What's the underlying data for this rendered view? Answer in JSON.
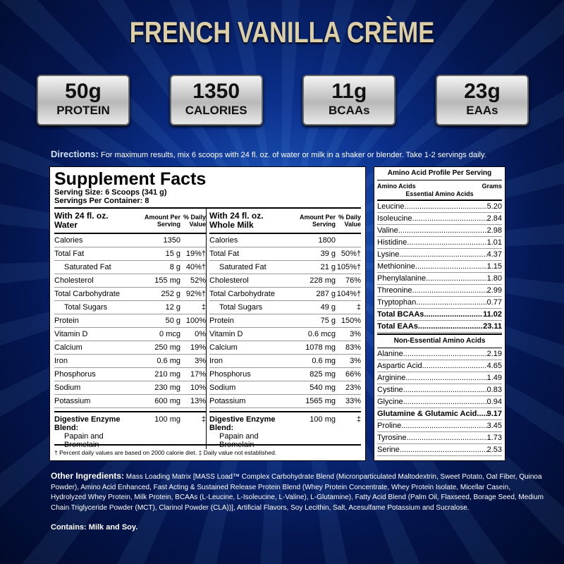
{
  "title": "FRENCH VANILLA CRÈME",
  "badges": [
    {
      "value": "50g",
      "label": "PROTEIN"
    },
    {
      "value": "1350",
      "label": "CALORIES"
    },
    {
      "value": "11g",
      "label": "BCAAs"
    },
    {
      "value": "23g",
      "label": "EAAs"
    }
  ],
  "directions": {
    "label": "Directions:",
    "text": "For maximum results, mix 6 scoops with 24 fl. oz. of water or milk in a shaker or blender. Take 1-2 servings daily."
  },
  "facts": {
    "title": "Supplement Facts",
    "serving_size": "Serving Size: 6 Scoops (341 g)",
    "servings": "Servings Per Container: 8",
    "amount_header": "Amount Per Serving",
    "dv_header": "% Daily Value",
    "water": {
      "heading": "With 24 fl. oz. Water",
      "rows": [
        {
          "n": "Calories",
          "a": "1350",
          "d": ""
        },
        {
          "n": "Total Fat",
          "a": "15 g",
          "d": "19%†"
        },
        {
          "n": "Saturated Fat",
          "a": "8 g",
          "d": "40%†",
          "ind": true
        },
        {
          "n": "Cholesterol",
          "a": "155 mg",
          "d": "52%"
        },
        {
          "n": "Total Carbohydrate",
          "a": "252 g",
          "d": "92%†"
        },
        {
          "n": "Total Sugars",
          "a": "12 g",
          "d": "‡",
          "ind": true
        },
        {
          "n": "Protein",
          "a": "50 g",
          "d": "100%"
        },
        {
          "n": "Vitamin D",
          "a": "0 mcg",
          "d": "0%"
        },
        {
          "n": "Calcium",
          "a": "250 mg",
          "d": "19%"
        },
        {
          "n": "Iron",
          "a": "0.6 mg",
          "d": "3%"
        },
        {
          "n": "Phosphorus",
          "a": "210 mg",
          "d": "17%"
        },
        {
          "n": "Sodium",
          "a": "230 mg",
          "d": "10%"
        },
        {
          "n": "Potassium",
          "a": "600 mg",
          "d": "13%"
        }
      ],
      "blend": {
        "n": "Digestive Enzyme Blend:",
        "sub": "Papain and Bromelain",
        "a": "100 mg",
        "d": "‡"
      }
    },
    "milk": {
      "heading": "With 24 fl. oz. Whole Milk",
      "rows": [
        {
          "n": "Calories",
          "a": "1800",
          "d": ""
        },
        {
          "n": "Total Fat",
          "a": "39 g",
          "d": "50%†"
        },
        {
          "n": "Saturated Fat",
          "a": "21 g",
          "d": "105%†",
          "ind": true
        },
        {
          "n": "Cholesterol",
          "a": "228 mg",
          "d": "76%"
        },
        {
          "n": "Total Carbohydrate",
          "a": "287 g",
          "d": "104%†"
        },
        {
          "n": "Total Sugars",
          "a": "49 g",
          "d": "‡",
          "ind": true
        },
        {
          "n": "Protein",
          "a": "75 g",
          "d": "150%"
        },
        {
          "n": "Vitamin D",
          "a": "0.6 mcg",
          "d": "3%"
        },
        {
          "n": "Calcium",
          "a": "1078 mg",
          "d": "83%"
        },
        {
          "n": "Iron",
          "a": "0.6 mg",
          "d": "3%"
        },
        {
          "n": "Phosphorus",
          "a": "825 mg",
          "d": "66%"
        },
        {
          "n": "Sodium",
          "a": "540 mg",
          "d": "23%"
        },
        {
          "n": "Potassium",
          "a": "1565 mg",
          "d": "33%"
        }
      ],
      "blend": {
        "n": "Digestive Enzyme Blend:",
        "sub": "Papain and Bromelain",
        "a": "100 mg",
        "d": "‡"
      }
    },
    "footnote": "† Percent daily values are based on 2000 calorie diet.  ‡ Daily value not established."
  },
  "amino": {
    "title": "Amino Acid Profile Per Serving",
    "col1": "Amino Acids",
    "col2": "Grams",
    "essential": "Essential Amino Acids",
    "essential_rows": [
      {
        "n": "Leucine",
        "v": "5.20"
      },
      {
        "n": "Isoleucine",
        "v": "2.84"
      },
      {
        "n": "Valine",
        "v": "2.98"
      },
      {
        "n": "Histidine",
        "v": "1.01"
      },
      {
        "n": "Lysine",
        "v": "4.37"
      },
      {
        "n": "Methionine",
        "v": "1.15"
      },
      {
        "n": "Phenylalanine",
        "v": "1.80"
      },
      {
        "n": "Threonine",
        "v": "2.99"
      },
      {
        "n": "Tryptophan",
        "v": "0.77"
      },
      {
        "n": "Total BCAAs",
        "v": "11.02",
        "b": true
      },
      {
        "n": "Total EAAs",
        "v": "23.11",
        "b": true
      }
    ],
    "nonessential": "Non-Essential Amino Acids",
    "nonessential_rows": [
      {
        "n": "Alanine",
        "v": "2.19"
      },
      {
        "n": "Aspartic Acid",
        "v": "4.65"
      },
      {
        "n": "Arginine",
        "v": "1.49"
      },
      {
        "n": "Cystine",
        "v": "0.83"
      },
      {
        "n": "Glycine",
        "v": "0.94"
      },
      {
        "n": "Glutamine & Glutamic Acid",
        "v": "9.17",
        "b": true
      },
      {
        "n": "Proline",
        "v": "3.45"
      },
      {
        "n": "Tyrosine",
        "v": "1.73"
      },
      {
        "n": "Serine",
        "v": "2.53"
      }
    ]
  },
  "ingredients": {
    "label": "Other Ingredients:",
    "text": "Mass Loading Matrix [MASS Load™ Complex Carbohydrate Blend (Micronparticulated Maltodextrin, Sweet Potato, Oat Fiber, Quinoa Powder), Amino Acid Enhanced, Fast Acting & Sustained Release Protein Blend (Whey Protein Concentrate, Whey Protein Isolate, Micellar Casein, Hydrolyzed Whey Protein, Milk Protein, BCAAs (L-Leucine, L-Isoleucine, L-Valine), L-Glutamine), Fatty Acid Blend (Palm Oil, Flaxseed, Borage Seed, Medium Chain Triglyceride Powder (MCT), Clarinol Powder (CLA))], Artificial Flavors, Soy Lecithin, Salt, Acesulfame Potassium and Sucralose."
  },
  "contains": "Contains: Milk and Soy."
}
